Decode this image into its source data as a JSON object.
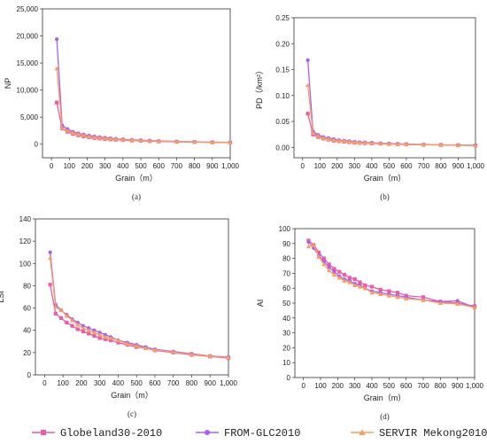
{
  "legend": [
    {
      "name": "Globeland30-2010",
      "marker": "square"
    },
    {
      "name": "FROM-GLC2010",
      "marker": "circle"
    },
    {
      "name": "SERVIR Mekong2010",
      "marker": "triangle"
    }
  ],
  "colors": {
    "Globeland30-2010": "#ee5ca6",
    "FROM-GLC2010": "#aa60ee",
    "SERVIR Mekong2010": "#f5a060"
  },
  "chart_data": [
    {
      "type": "line",
      "panel_label": "(a)",
      "xlabel": "Grain（m）",
      "ylabel": "NP",
      "xlim": [
        -50,
        1000
      ],
      "ylim": [
        -2500,
        25000
      ],
      "x_ticks": [
        0,
        100,
        200,
        300,
        400,
        500,
        600,
        700,
        800,
        900,
        1000
      ],
      "x_tick_labels": [
        "0",
        "100",
        "200",
        "300",
        "400",
        "500",
        "600",
        "700",
        "800",
        "900",
        "1,000"
      ],
      "y_ticks": [
        0,
        5000,
        10000,
        15000,
        20000,
        25000
      ],
      "y_tick_labels": [
        "0",
        "5,000",
        "10,000",
        "15,000",
        "20,000",
        "25,000"
      ],
      "x": [
        30,
        60,
        90,
        120,
        150,
        180,
        210,
        240,
        270,
        300,
        330,
        360,
        400,
        450,
        500,
        550,
        600,
        700,
        800,
        900,
        1000
      ],
      "series": [
        {
          "name": "Globeland30-2010",
          "values": [
            7700,
            2900,
            2300,
            1900,
            1650,
            1450,
            1300,
            1150,
            1050,
            950,
            880,
            820,
            750,
            680,
            620,
            560,
            510,
            440,
            380,
            330,
            290
          ]
        },
        {
          "name": "FROM-GLC2010",
          "values": [
            19400,
            3500,
            2800,
            2300,
            2000,
            1800,
            1600,
            1450,
            1300,
            1200,
            1100,
            1000,
            920,
            820,
            740,
            670,
            610,
            520,
            450,
            390,
            340
          ]
        },
        {
          "name": "SERVIR Mekong2010",
          "values": [
            14000,
            3000,
            2500,
            2100,
            1850,
            1650,
            1450,
            1300,
            1180,
            1080,
            1000,
            930,
            850,
            760,
            690,
            620,
            570,
            480,
            420,
            360,
            320
          ]
        }
      ]
    },
    {
      "type": "line",
      "panel_label": "(b)",
      "xlabel": "Grain（m）",
      "ylabel": "PD（/km²）",
      "xlim": [
        -50,
        1000
      ],
      "ylim": [
        -0.02,
        0.25
      ],
      "x_ticks": [
        0,
        100,
        200,
        300,
        400,
        500,
        600,
        700,
        800,
        900,
        1000
      ],
      "x_tick_labels": [
        "0",
        "100",
        "200",
        "300",
        "400",
        "500",
        "600",
        "700",
        "800",
        "900",
        "1,000"
      ],
      "y_ticks": [
        0,
        0.05,
        0.1,
        0.15,
        0.2,
        0.25
      ],
      "y_tick_labels": [
        "0.00",
        "0.05",
        "0.10",
        "0.15",
        "0.20",
        "0.25"
      ],
      "x": [
        30,
        60,
        90,
        120,
        150,
        180,
        210,
        240,
        270,
        300,
        330,
        360,
        400,
        450,
        500,
        550,
        600,
        700,
        800,
        900,
        1000
      ],
      "series": [
        {
          "name": "Globeland30-2010",
          "values": [
            0.065,
            0.025,
            0.02,
            0.017,
            0.015,
            0.013,
            0.012,
            0.011,
            0.01,
            0.009,
            0.0085,
            0.008,
            0.0075,
            0.007,
            0.0065,
            0.006,
            0.0055,
            0.005,
            0.0045,
            0.004,
            0.0035
          ]
        },
        {
          "name": "FROM-GLC2010",
          "values": [
            0.168,
            0.031,
            0.024,
            0.02,
            0.018,
            0.016,
            0.014,
            0.013,
            0.012,
            0.011,
            0.01,
            0.0095,
            0.009,
            0.008,
            0.0075,
            0.007,
            0.0065,
            0.0055,
            0.005,
            0.0045,
            0.004
          ]
        },
        {
          "name": "SERVIR Mekong2010",
          "values": [
            0.12,
            0.028,
            0.022,
            0.018,
            0.016,
            0.0145,
            0.013,
            0.012,
            0.011,
            0.01,
            0.0092,
            0.0087,
            0.0082,
            0.0075,
            0.007,
            0.0065,
            0.006,
            0.0052,
            0.0047,
            0.0042,
            0.0037
          ]
        }
      ]
    },
    {
      "type": "line",
      "panel_label": "(c)",
      "xlabel": "Grain（m）",
      "ylabel": "LSI",
      "xlim": [
        -50,
        1000
      ],
      "ylim": [
        0,
        140
      ],
      "x_ticks": [
        0,
        100,
        200,
        300,
        400,
        500,
        600,
        700,
        800,
        900,
        1000
      ],
      "x_tick_labels": [
        "0",
        "100",
        "200",
        "300",
        "400",
        "500",
        "600",
        "700",
        "800",
        "900",
        "1,000"
      ],
      "y_ticks": [
        0,
        20,
        40,
        60,
        80,
        100,
        120,
        140
      ],
      "y_tick_labels": [
        "0",
        "20",
        "40",
        "60",
        "80",
        "100",
        "120",
        "140"
      ],
      "x": [
        30,
        60,
        90,
        120,
        150,
        180,
        210,
        240,
        270,
        300,
        330,
        360,
        400,
        450,
        500,
        550,
        600,
        700,
        800,
        900,
        1000
      ],
      "series": [
        {
          "name": "Globeland30-2010",
          "values": [
            81,
            55,
            51,
            47,
            44,
            41,
            39,
            37,
            35,
            33,
            32,
            31,
            29,
            27,
            25,
            24,
            22,
            20,
            18,
            16.5,
            15
          ]
        },
        {
          "name": "FROM-GLC2010",
          "values": [
            110,
            63,
            58,
            54,
            50,
            47,
            44,
            42,
            40,
            38,
            36,
            34,
            31,
            29,
            27,
            25,
            23,
            21,
            19,
            17,
            16
          ]
        },
        {
          "name": "SERVIR Mekong2010",
          "values": [
            105,
            61,
            58,
            53,
            49,
            45,
            42,
            40,
            38,
            36,
            34,
            33,
            31,
            28,
            26,
            24,
            22.5,
            20.5,
            18.5,
            17,
            15.5
          ]
        }
      ]
    },
    {
      "type": "line",
      "panel_label": "(d)",
      "xlabel": "Grain（m）",
      "ylabel": "AI",
      "xlim": [
        -50,
        1000
      ],
      "ylim": [
        0,
        100
      ],
      "x_ticks": [
        0,
        100,
        200,
        300,
        400,
        500,
        600,
        700,
        800,
        900,
        1000
      ],
      "x_tick_labels": [
        "0",
        "100",
        "200",
        "300",
        "400",
        "500",
        "600",
        "700",
        "800",
        "900",
        "1,000"
      ],
      "y_ticks": [
        0,
        10,
        20,
        30,
        40,
        50,
        60,
        70,
        80,
        90,
        100
      ],
      "y_tick_labels": [
        "0",
        "10",
        "20",
        "30",
        "40",
        "50",
        "60",
        "70",
        "80",
        "90",
        "100"
      ],
      "x": [
        30,
        60,
        90,
        120,
        150,
        180,
        210,
        240,
        270,
        300,
        330,
        360,
        400,
        450,
        500,
        550,
        600,
        700,
        800,
        900,
        1000
      ],
      "series": [
        {
          "name": "Globeland30-2010",
          "values": [
            92,
            89,
            84,
            80,
            76,
            73,
            71,
            69,
            67,
            66,
            64,
            62,
            61,
            59,
            58,
            57,
            55,
            54,
            51,
            50,
            48
          ]
        },
        {
          "name": "FROM-GLC2010",
          "values": [
            91,
            87,
            82,
            78,
            74,
            71,
            68,
            66,
            65,
            63,
            62,
            60,
            58,
            57,
            56,
            55,
            54,
            52,
            51,
            51.5,
            47
          ]
        },
        {
          "name": "SERVIR Mekong2010",
          "values": [
            88,
            89,
            81,
            76,
            72,
            69,
            67,
            65,
            64,
            62,
            61,
            60,
            57,
            56,
            55,
            54,
            53,
            52,
            50,
            49.5,
            47
          ]
        }
      ]
    }
  ]
}
